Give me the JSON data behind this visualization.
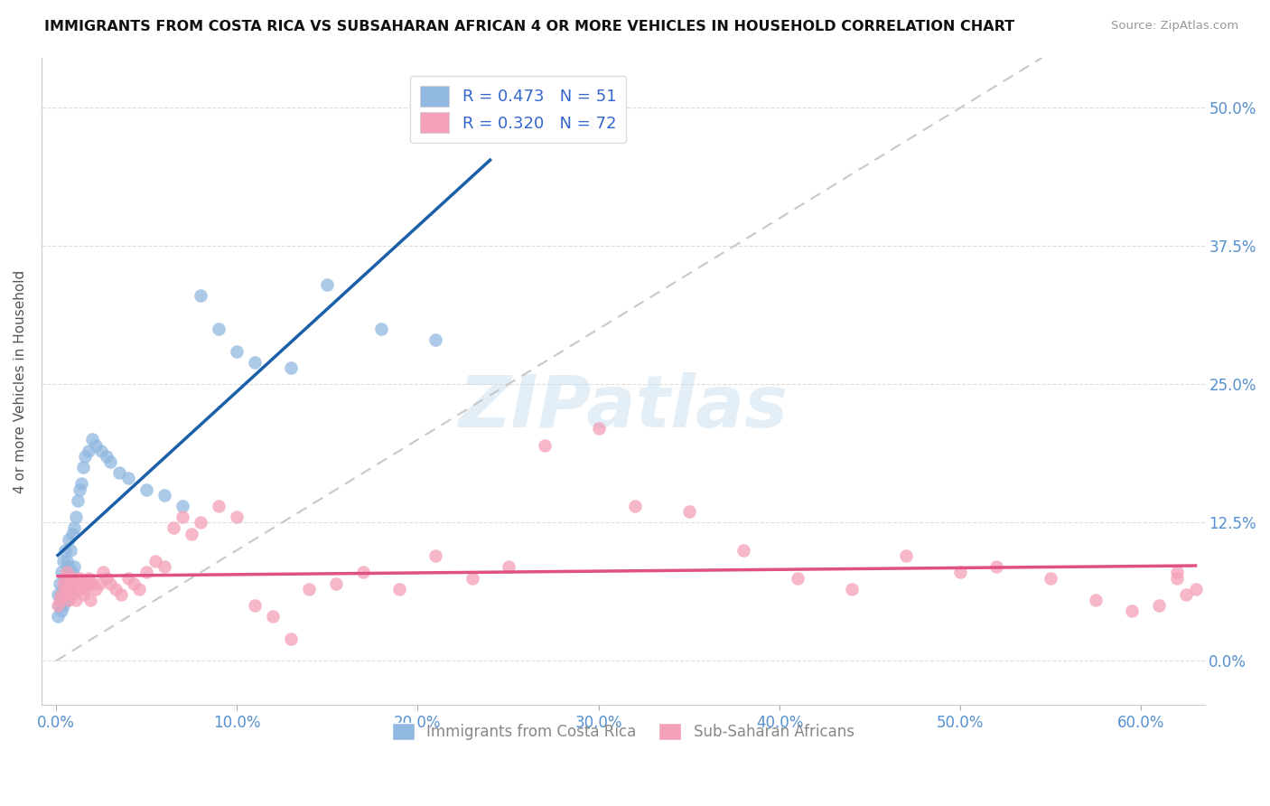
{
  "title": "IMMIGRANTS FROM COSTA RICA VS SUBSAHARAN AFRICAN 4 OR MORE VEHICLES IN HOUSEHOLD CORRELATION CHART",
  "source": "Source: ZipAtlas.com",
  "ylabel": "4 or more Vehicles in Household",
  "xlabel_vals": [
    0.0,
    0.1,
    0.2,
    0.3,
    0.4,
    0.5,
    0.6
  ],
  "ylabel_vals": [
    0.0,
    0.125,
    0.25,
    0.375,
    0.5
  ],
  "ylabel_ticks": [
    "0.0%",
    "12.5%",
    "25.0%",
    "37.5%",
    "50.0%"
  ],
  "xlim": [
    -0.008,
    0.635
  ],
  "ylim": [
    -0.04,
    0.545
  ],
  "legend_labels_bottom": [
    "Immigrants from Costa Rica",
    "Sub-Saharan Africans"
  ],
  "watermark": "ZIPatlas",
  "blue_scatter_color": "#90b8e0",
  "pink_scatter_color": "#f4a0b8",
  "blue_line_color": "#1a5fa8",
  "pink_line_color": "#e05080",
  "diagonal_color": "#c8c8c8",
  "blue_points_x": [
    0.001,
    0.001,
    0.002,
    0.002,
    0.003,
    0.003,
    0.003,
    0.004,
    0.004,
    0.004,
    0.005,
    0.005,
    0.005,
    0.006,
    0.006,
    0.006,
    0.007,
    0.007,
    0.007,
    0.008,
    0.008,
    0.009,
    0.009,
    0.01,
    0.01,
    0.011,
    0.012,
    0.013,
    0.014,
    0.015,
    0.016,
    0.018,
    0.02,
    0.022,
    0.025,
    0.028,
    0.03,
    0.035,
    0.04,
    0.05,
    0.06,
    0.07,
    0.08,
    0.09,
    0.1,
    0.11,
    0.13,
    0.15,
    0.18,
    0.21,
    0.24
  ],
  "blue_points_y": [
    0.06,
    0.04,
    0.07,
    0.05,
    0.08,
    0.06,
    0.045,
    0.09,
    0.065,
    0.05,
    0.1,
    0.075,
    0.055,
    0.09,
    0.07,
    0.055,
    0.11,
    0.085,
    0.065,
    0.1,
    0.075,
    0.115,
    0.08,
    0.12,
    0.085,
    0.13,
    0.145,
    0.155,
    0.16,
    0.175,
    0.185,
    0.19,
    0.2,
    0.195,
    0.19,
    0.185,
    0.18,
    0.17,
    0.165,
    0.155,
    0.15,
    0.14,
    0.33,
    0.3,
    0.28,
    0.27,
    0.265,
    0.34,
    0.3,
    0.29,
    0.5
  ],
  "pink_points_x": [
    0.001,
    0.002,
    0.003,
    0.004,
    0.005,
    0.005,
    0.006,
    0.006,
    0.007,
    0.007,
    0.008,
    0.008,
    0.009,
    0.01,
    0.01,
    0.011,
    0.012,
    0.013,
    0.014,
    0.015,
    0.016,
    0.017,
    0.018,
    0.019,
    0.02,
    0.022,
    0.024,
    0.026,
    0.028,
    0.03,
    0.033,
    0.036,
    0.04,
    0.043,
    0.046,
    0.05,
    0.055,
    0.06,
    0.065,
    0.07,
    0.075,
    0.08,
    0.09,
    0.1,
    0.11,
    0.12,
    0.13,
    0.14,
    0.155,
    0.17,
    0.19,
    0.21,
    0.23,
    0.25,
    0.27,
    0.3,
    0.32,
    0.35,
    0.38,
    0.41,
    0.44,
    0.47,
    0.5,
    0.52,
    0.55,
    0.575,
    0.595,
    0.61,
    0.62,
    0.62,
    0.625,
    0.63
  ],
  "pink_points_y": [
    0.05,
    0.055,
    0.06,
    0.07,
    0.065,
    0.075,
    0.06,
    0.08,
    0.07,
    0.055,
    0.065,
    0.075,
    0.06,
    0.07,
    0.075,
    0.055,
    0.065,
    0.075,
    0.07,
    0.06,
    0.065,
    0.07,
    0.075,
    0.055,
    0.07,
    0.065,
    0.07,
    0.08,
    0.075,
    0.07,
    0.065,
    0.06,
    0.075,
    0.07,
    0.065,
    0.08,
    0.09,
    0.085,
    0.12,
    0.13,
    0.115,
    0.125,
    0.14,
    0.13,
    0.05,
    0.04,
    0.02,
    0.065,
    0.07,
    0.08,
    0.065,
    0.095,
    0.075,
    0.085,
    0.195,
    0.21,
    0.14,
    0.135,
    0.1,
    0.075,
    0.065,
    0.095,
    0.08,
    0.085,
    0.075,
    0.055,
    0.045,
    0.05,
    0.075,
    0.08,
    0.06,
    0.065
  ]
}
